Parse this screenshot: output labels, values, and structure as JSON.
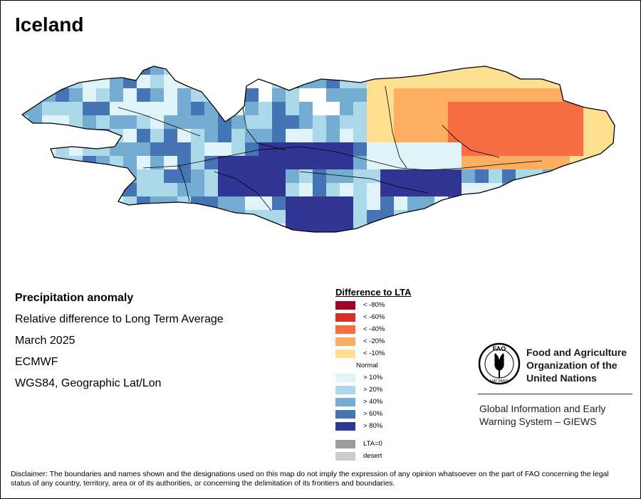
{
  "map": {
    "title": "Iceland"
  },
  "info": {
    "title": "Precipitation anomaly",
    "subtitle": "Relative difference to Long Term Average",
    "period": "March 2025",
    "source": "ECMWF",
    "projection": "WGS84, Geographic Lat/Lon"
  },
  "legend": {
    "title": "Difference to LTA",
    "dry": [
      {
        "label": "< -80%",
        "color": "#a50026"
      },
      {
        "label": "< -60%",
        "color": "#d73027"
      },
      {
        "label": "< -40%",
        "color": "#f46d43"
      },
      {
        "label": "< -20%",
        "color": "#fdae61"
      },
      {
        "label": "< -10%",
        "color": "#fee090"
      }
    ],
    "normal": "Normal",
    "wet": [
      {
        "label": "> 10%",
        "color": "#e0f3f8"
      },
      {
        "label": "> 20%",
        "color": "#abd9e9"
      },
      {
        "label": "> 40%",
        "color": "#74add1"
      },
      {
        "label": "> 60%",
        "color": "#4575b4"
      },
      {
        "label": "> 80%",
        "color": "#313695"
      }
    ],
    "special": [
      {
        "label": "LTA=0",
        "color": "#9b9b9b"
      },
      {
        "label": "desert",
        "color": "#cccccc"
      }
    ]
  },
  "fao": {
    "logo_top": "FAO",
    "logo_bottom": "FIAT PANIS",
    "org_lines": [
      "Food and Agriculture",
      "Organization of the",
      "United Nations"
    ],
    "giews_lines": [
      "Global Information and Early",
      "Warning System – GIEWS"
    ]
  },
  "disclaimer": "Disclaimer: The boundaries and names shown and the designations used on this map do not imply the expression of any opinion whatsoever on the part of FAO concerning the legal status of any country, territory, area or of its authorities, or concerning the delimitation of its frontiers and boundaries."
}
